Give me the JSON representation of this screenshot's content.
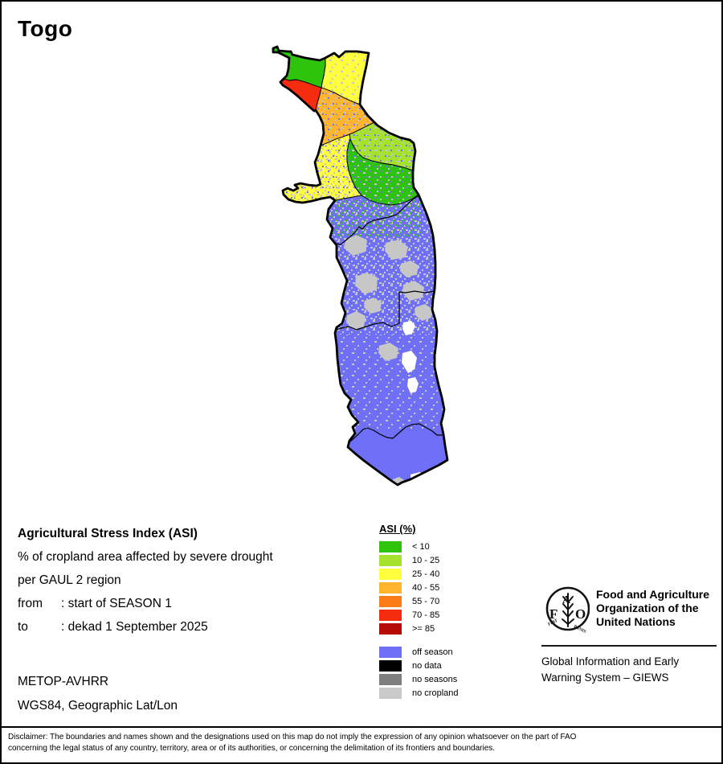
{
  "title": "Togo",
  "info": {
    "heading": "Agricultural Stress Index (ASI)",
    "line1": "% of cropland area affected by severe drought",
    "line2": "per GAUL 2 region",
    "from_label": "from",
    "from_value": ": start of SEASON 1",
    "to_label": "to",
    "to_value": ": dekad 1 September 2025"
  },
  "sensor": {
    "line1": "METOP-AVHRR",
    "line2": "WGS84, Geographic Lat/Lon"
  },
  "legend": {
    "title": "ASI (%)",
    "classes": [
      {
        "label": "< 10",
        "color": "#2EC40E"
      },
      {
        "label": "10 - 25",
        "color": "#A5E22D"
      },
      {
        "label": "25 - 40",
        "color": "#FFFF3D"
      },
      {
        "label": "40 - 55",
        "color": "#FFB62E"
      },
      {
        "label": "55 - 70",
        "color": "#FA7D19"
      },
      {
        "label": "70 - 85",
        "color": "#F52C0F"
      },
      {
        "label": ">= 85",
        "color": "#B50B09"
      }
    ],
    "extras": [
      {
        "label": "off season",
        "color": "#6F6FF7"
      },
      {
        "label": "no data",
        "color": "#000000"
      },
      {
        "label": "no seasons",
        "color": "#7F7F7F"
      },
      {
        "label": "no cropland",
        "color": "#C9C9C9"
      }
    ]
  },
  "map": {
    "colors": {
      "lt10": "#2EC40E",
      "c10_25": "#A5E22D",
      "c25_40": "#FFFF3D",
      "c40_55": "#FFB62E",
      "c55_70": "#FA7D19",
      "c70_85": "#F52C0F",
      "ge85": "#B50B09",
      "off_season": "#6F6FF7",
      "no_cropland_speckle": "#C7C7C7",
      "white_gap": "#FFFFFF",
      "boundary": "#000000"
    }
  },
  "footer": {
    "org_lines": [
      "Food and Agriculture",
      "Organization of the",
      "United Nations"
    ],
    "giews_lines": [
      "Global Information and Early",
      "Warning System – GIEWS"
    ],
    "logo": {
      "letter_top": "A",
      "letter_left": "F",
      "letter_right": "O",
      "motto_left": "FIAT",
      "motto_right": "PANIS"
    }
  },
  "disclaimer": {
    "line1": "Disclaimer: The boundaries and names shown and the designations used on this map do not imply the expression of any opinion whatsoever on the part of FAO",
    "line2": "concerning the legal status of any country, territory, area or of its authorities, or concerning the delimitation of its frontiers and boundaries."
  }
}
